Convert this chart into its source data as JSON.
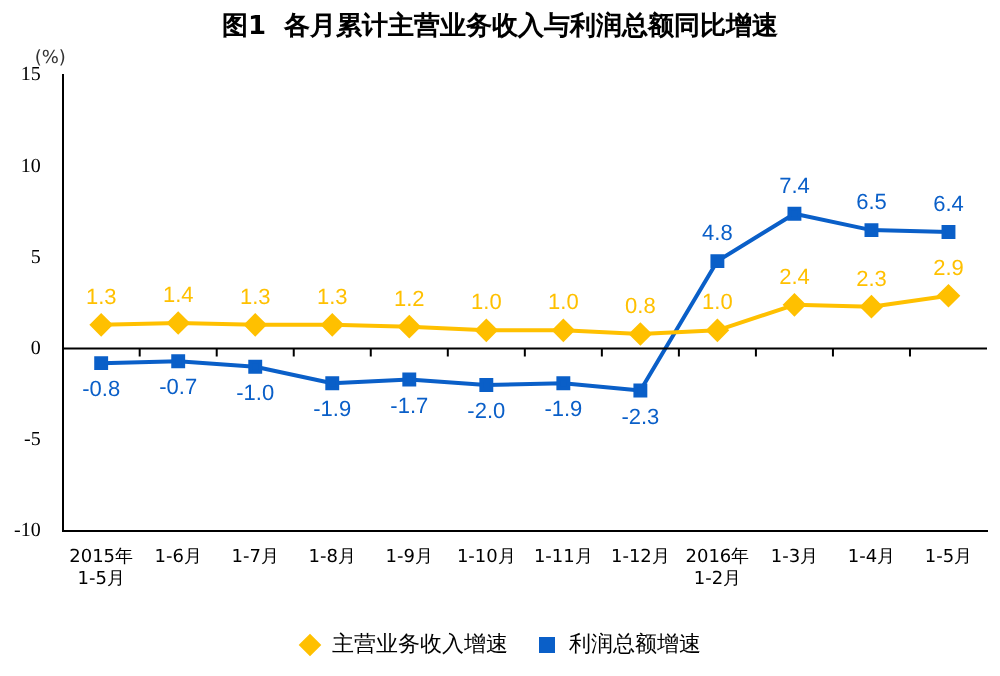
{
  "chart_data": {
    "type": "line",
    "title": "图1  各月累计主营业务收入与利润总额同比增速",
    "ylabel": "(%)",
    "categories": [
      "2015年\n1-5月",
      "1-6月",
      "1-7月",
      "1-8月",
      "1-9月",
      "1-10月",
      "1-11月",
      "1-12月",
      "2016年\n1-2月",
      "1-3月",
      "1-4月",
      "1-5月"
    ],
    "series": [
      {
        "name": "主营业务收入增速",
        "color": "#ffc000",
        "marker": "diamond",
        "values": [
          1.3,
          1.4,
          1.3,
          1.3,
          1.2,
          1.0,
          1.0,
          0.8,
          1.0,
          2.4,
          2.3,
          2.9
        ],
        "value_labels": [
          "1.3",
          "1.4",
          "1.3",
          "1.3",
          "1.2",
          "1.0",
          "1.0",
          "0.8",
          "1.0",
          "2.4",
          "2.3",
          "2.9"
        ]
      },
      {
        "name": "利润总额增速",
        "color": "#0a5fc8",
        "marker": "square",
        "values": [
          -0.8,
          -0.7,
          -1.0,
          -1.9,
          -1.7,
          -2.0,
          -1.9,
          -2.3,
          4.8,
          7.4,
          6.5,
          6.4
        ],
        "value_labels": [
          "-0.8",
          "-0.7",
          "-1.0",
          "-1.9",
          "-1.7",
          "-2.0",
          "-1.9",
          "-2.3",
          "4.8",
          "7.4",
          "6.5",
          "6.4"
        ]
      }
    ],
    "ylim": [
      -10,
      15
    ],
    "yticks": [
      -10,
      -5,
      0,
      5,
      10,
      15
    ],
    "legend": "bottom",
    "line_style": "solid"
  }
}
